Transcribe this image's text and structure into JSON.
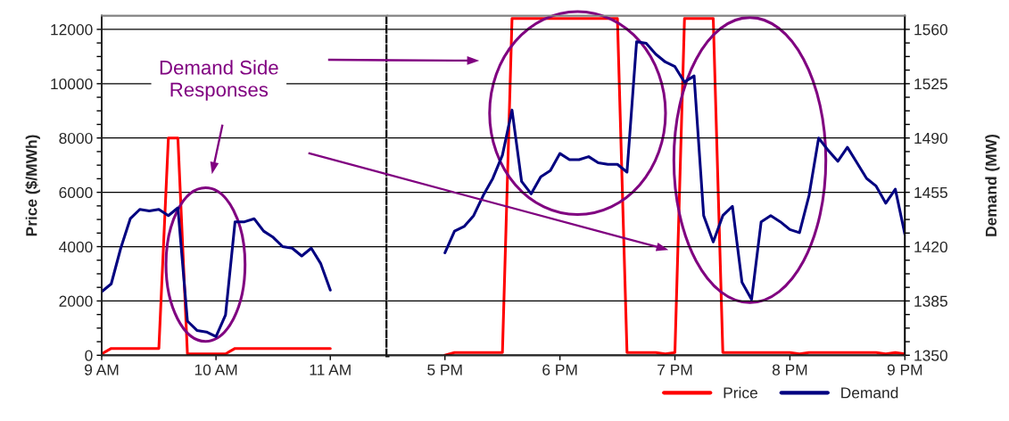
{
  "chart_data": [
    {
      "type": "line",
      "ylabel": "Price ($/MWh)",
      "grid": "y",
      "annotations": [
        "Demand Side\nResponses"
      ],
      "categories": [
        "9 AM",
        null,
        null,
        null,
        null,
        null,
        null,
        null,
        null,
        null,
        null,
        null,
        "10 AM",
        null,
        null,
        null,
        null,
        null,
        null,
        null,
        null,
        null,
        null,
        null,
        "11 AM",
        null,
        null,
        null,
        null,
        null,
        null
      ],
      "series": [
        {
          "color": "#ff0000",
          "axis": "y",
          "values": [
            50,
            250,
            250,
            250,
            250,
            250,
            250,
            8000,
            8000,
            50,
            50,
            50,
            50,
            50,
            250,
            250,
            250,
            250,
            250,
            250,
            250,
            250,
            250,
            250,
            250,
            null,
            null,
            null,
            null,
            null,
            null
          ]
        },
        {
          "color": "#000080",
          "axis": "y2",
          "values": [
            1391,
            1396,
            1419,
            1438,
            1444,
            1443,
            1444,
            1440,
            1445,
            1372,
            1366,
            1365,
            1362,
            1376,
            1436,
            1436,
            1438,
            1430,
            1426,
            1420,
            1419,
            1414,
            1419,
            1409,
            1392,
            null,
            null,
            null,
            null,
            null,
            null
          ]
        }
      ],
      "ylim": [
        0,
        12500
      ],
      "yticks": [
        0,
        {
          "value": 500,
          "label": null
        },
        {
          "value": 1000,
          "label": null
        },
        {
          "value": 1500,
          "label": null
        },
        2000,
        {
          "value": 2500,
          "label": null
        },
        {
          "value": 3000,
          "label": null
        },
        {
          "value": 3500,
          "label": null
        },
        4000,
        {
          "value": 4500,
          "label": null
        },
        {
          "value": 5000,
          "label": null
        },
        {
          "value": 5500,
          "label": null
        },
        6000,
        {
          "value": 6500,
          "label": null
        },
        {
          "value": 7000,
          "label": null
        },
        {
          "value": 7500,
          "label": null
        },
        8000,
        {
          "value": 8500,
          "label": null
        },
        {
          "value": 9000,
          "label": null
        },
        {
          "value": 9500,
          "label": null
        },
        10000,
        {
          "value": 10500,
          "label": null
        },
        {
          "value": 11000,
          "label": null
        },
        {
          "value": 11500,
          "label": null
        },
        12000
      ],
      "y2lim": [
        1350,
        1568.75
      ]
    },
    {
      "type": "line",
      "y2label": "Demand (MW)",
      "grid": "y",
      "legend": "bottom right",
      "categories": [
        null,
        null,
        null,
        null,
        null,
        null,
        "5 PM",
        null,
        null,
        null,
        null,
        null,
        null,
        null,
        null,
        null,
        null,
        null,
        "6 PM",
        null,
        null,
        null,
        null,
        null,
        null,
        null,
        null,
        null,
        null,
        null,
        "7 PM",
        null,
        null,
        null,
        null,
        null,
        null,
        null,
        null,
        null,
        null,
        null,
        "8 PM",
        null,
        null,
        null,
        null,
        null,
        null,
        null,
        null,
        null,
        null,
        null,
        "9 PM"
      ],
      "series": [
        {
          "name": "Price",
          "color": "#ff0000",
          "axis": "y",
          "values": [
            null,
            null,
            null,
            null,
            null,
            null,
            0,
            100,
            100,
            100,
            100,
            100,
            100,
            12400,
            12400,
            12400,
            12400,
            12400,
            12400,
            12400,
            12400,
            12400,
            12400,
            12400,
            12400,
            100,
            100,
            100,
            100,
            50,
            100,
            12400,
            12400,
            12400,
            12400,
            100,
            100,
            100,
            100,
            100,
            100,
            100,
            100,
            50,
            100,
            100,
            100,
            100,
            100,
            100,
            100,
            100,
            50,
            100,
            50
          ]
        },
        {
          "name": "Demand",
          "color": "#000080",
          "axis": "y2",
          "values": [
            null,
            null,
            null,
            null,
            null,
            null,
            1416,
            1430,
            1433,
            1440,
            1453,
            1464,
            1479,
            1508,
            1462,
            1454,
            1465,
            1469,
            1480,
            1476,
            1476,
            1478,
            1474,
            1473,
            1473,
            1468,
            1552,
            1551,
            1544,
            1539,
            1536,
            1526,
            1530,
            1440,
            1423,
            1440,
            1446,
            1397,
            1386,
            1436,
            1440,
            1436,
            1431,
            1429,
            1453,
            1490,
            1482,
            1475,
            1484,
            1474,
            1464,
            1459,
            1448,
            1457,
            1428
          ]
        }
      ],
      "ylim": [
        0,
        12500
      ],
      "y2lim": [
        1350,
        1568.75
      ],
      "y2ticks": [
        1350,
        {
          "value": 1358.75,
          "label": null
        },
        {
          "value": 1367.5,
          "label": null
        },
        {
          "value": 1376.25,
          "label": null
        },
        1385,
        {
          "value": 1393.75,
          "label": null
        },
        {
          "value": 1402.5,
          "label": null
        },
        {
          "value": 1411.25,
          "label": null
        },
        1420,
        {
          "value": 1428.75,
          "label": null
        },
        {
          "value": 1437.5,
          "label": null
        },
        {
          "value": 1446.25,
          "label": null
        },
        1455,
        {
          "value": 1463.75,
          "label": null
        },
        {
          "value": 1472.5,
          "label": null
        },
        {
          "value": 1481.25,
          "label": null
        },
        1490,
        {
          "value": 1498.75,
          "label": null
        },
        {
          "value": 1507.5,
          "label": null
        },
        {
          "value": 1516.25,
          "label": null
        },
        1525,
        {
          "value": 1533.75,
          "label": null
        },
        {
          "value": 1542.5,
          "label": null
        },
        {
          "value": 1551.25,
          "label": null
        },
        1560
      ]
    }
  ]
}
